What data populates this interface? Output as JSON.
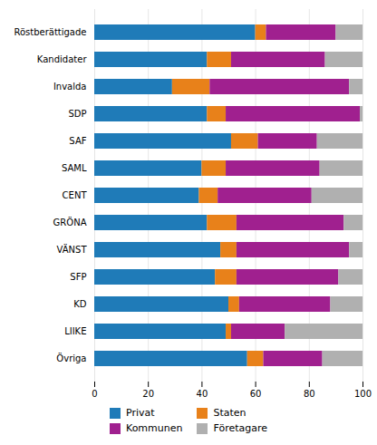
{
  "chart_data": {
    "type": "bar",
    "orientation": "horizontal",
    "stacked": true,
    "categories": [
      "Röstberättigade",
      "Kandidater",
      "Invalda",
      "SDP",
      "SAF",
      "SAML",
      "CENT",
      "GRÖNA",
      "VÄNST",
      "SFP",
      "KD",
      "LIIKE",
      "Övriga"
    ],
    "series": [
      {
        "name": "Privat",
        "color": "#1F7BB8",
        "values": [
          60,
          42,
          29,
          42,
          51,
          40,
          39,
          42,
          47,
          45,
          50,
          49,
          57
        ]
      },
      {
        "name": "Staten",
        "color": "#E8811A",
        "values": [
          4,
          9,
          14,
          7,
          10,
          9,
          7,
          11,
          6,
          8,
          4,
          2,
          6
        ]
      },
      {
        "name": "Kommunen",
        "color": "#A0208F",
        "values": [
          26,
          35,
          52,
          50,
          22,
          35,
          35,
          40,
          42,
          38,
          34,
          20,
          22
        ]
      },
      {
        "name": "Företagare",
        "color": "#B0B0B0",
        "values": [
          10,
          14,
          5,
          1,
          17,
          16,
          19,
          7,
          5,
          9,
          12,
          29,
          15
        ]
      }
    ],
    "xlim": [
      0,
      100
    ],
    "xticks": [
      0,
      20,
      40,
      60,
      80,
      100
    ],
    "grid": true,
    "legend": "bottom"
  }
}
